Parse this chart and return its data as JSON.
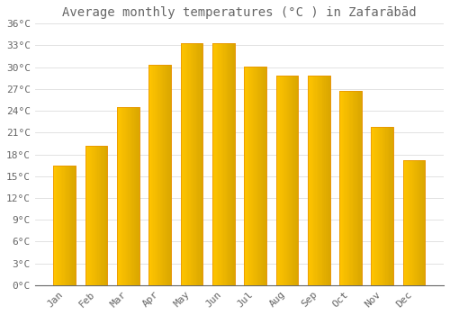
{
  "title": "Average monthly temperatures (°C ) in Zafarābād",
  "months": [
    "Jan",
    "Feb",
    "Mar",
    "Apr",
    "May",
    "Jun",
    "Jul",
    "Aug",
    "Sep",
    "Oct",
    "Nov",
    "Dec"
  ],
  "values": [
    16.5,
    19.2,
    24.5,
    30.3,
    33.3,
    33.3,
    30.1,
    28.8,
    28.8,
    26.8,
    21.8,
    17.2
  ],
  "bar_color_top": "#FFA500",
  "bar_color_bottom": "#FFD070",
  "bar_edge_color": "#E89000",
  "background_color": "#FFFFFF",
  "grid_color": "#DDDDDD",
  "text_color": "#666666",
  "ylim": [
    0,
    36
  ],
  "yticks": [
    0,
    3,
    6,
    9,
    12,
    15,
    18,
    21,
    24,
    27,
    30,
    33,
    36
  ],
  "ytick_labels": [
    "0°C",
    "3°C",
    "6°C",
    "9°C",
    "12°C",
    "15°C",
    "18°C",
    "21°C",
    "24°C",
    "27°C",
    "30°C",
    "33°C",
    "36°C"
  ],
  "title_fontsize": 10,
  "tick_fontsize": 8,
  "bar_width": 0.7
}
